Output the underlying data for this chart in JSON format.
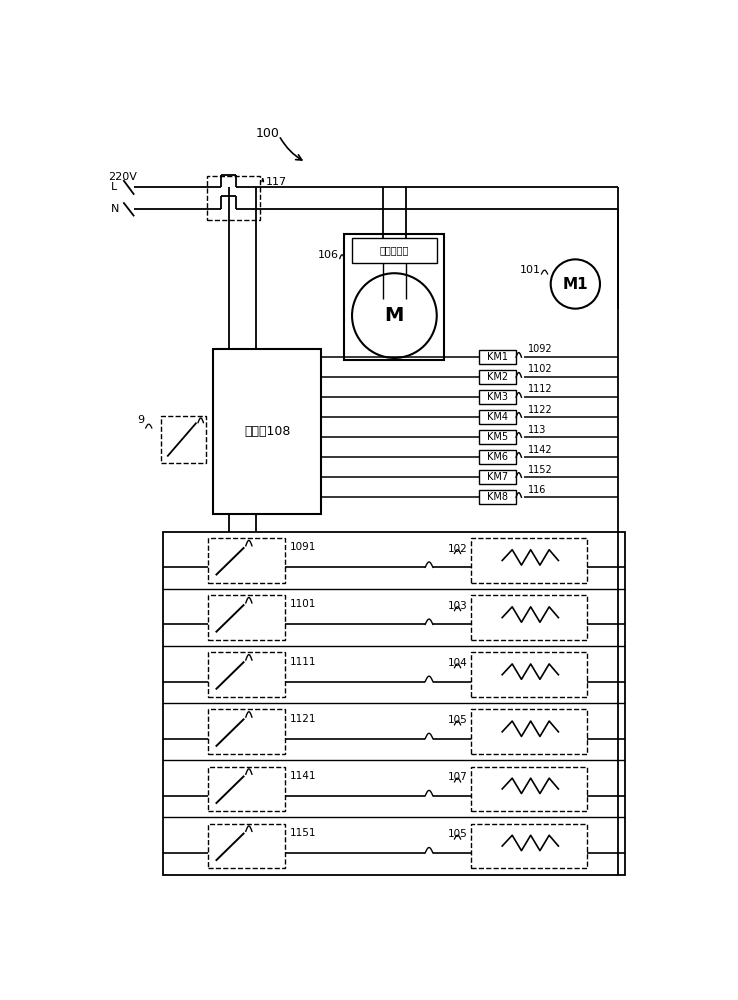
{
  "bg_color": "#ffffff",
  "km_labels": [
    "KM1",
    "KM2",
    "KM3",
    "KM4",
    "KM5",
    "KM6",
    "KM7",
    "KM8"
  ],
  "km_refs": [
    "1092",
    "1102",
    "1112",
    "1122",
    "113",
    "1142",
    "1152",
    "116"
  ],
  "switch_labels": [
    "1091",
    "1101",
    "1111",
    "1121",
    "1141",
    "1151"
  ],
  "sensor_labels": [
    "102",
    "103",
    "104",
    "105",
    "107",
    "105"
  ],
  "power_label": "220V",
  "L_label": "L",
  "N_label": "N",
  "plug_label": "117",
  "motor_label_big": "M",
  "motor_label_small": "M1",
  "motor_controller_label": "电机控制器",
  "controller_label": "控制器108",
  "ref_106": "106",
  "ref_101": "101",
  "ref_9": "9",
  "ref_100": "100"
}
